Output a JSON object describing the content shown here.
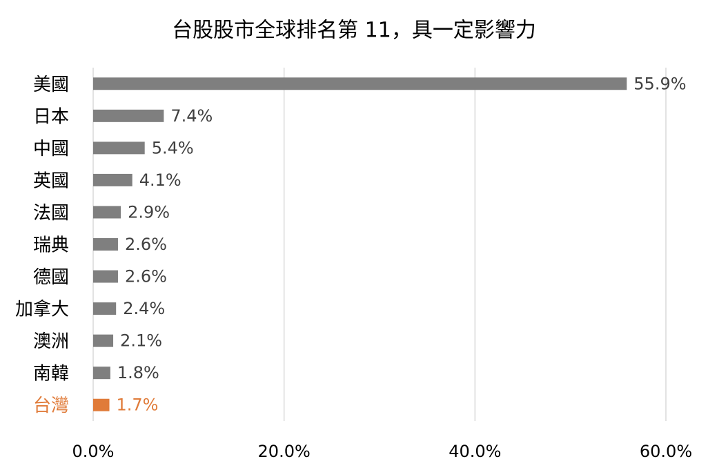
{
  "chart_data": {
    "type": "bar",
    "orientation": "horizontal",
    "title": "台股股市全球排名第 11，具一定影響力",
    "categories": [
      "美國",
      "日本",
      "中國",
      "英國",
      "法國",
      "瑞典",
      "德國",
      "加拿大",
      "澳洲",
      "南韓",
      "台灣"
    ],
    "values": [
      55.9,
      7.4,
      5.4,
      4.1,
      2.9,
      2.6,
      2.6,
      2.4,
      2.1,
      1.8,
      1.7
    ],
    "value_labels": [
      "55.9%",
      "7.4%",
      "5.4%",
      "4.1%",
      "2.9%",
      "2.6%",
      "2.6%",
      "2.4%",
      "2.1%",
      "1.8%",
      "1.7%"
    ],
    "colors": [
      "#7f7f7f",
      "#7f7f7f",
      "#7f7f7f",
      "#7f7f7f",
      "#7f7f7f",
      "#7f7f7f",
      "#7f7f7f",
      "#7f7f7f",
      "#7f7f7f",
      "#7f7f7f",
      "#e07b39"
    ],
    "xlim": [
      0,
      60
    ],
    "xticks": [
      {
        "value": 0,
        "label": "0.0%"
      },
      {
        "value": 20,
        "label": "20.0%"
      },
      {
        "value": 40,
        "label": "40.0%"
      },
      {
        "value": 60,
        "label": "60.0%"
      }
    ],
    "grid": true
  }
}
